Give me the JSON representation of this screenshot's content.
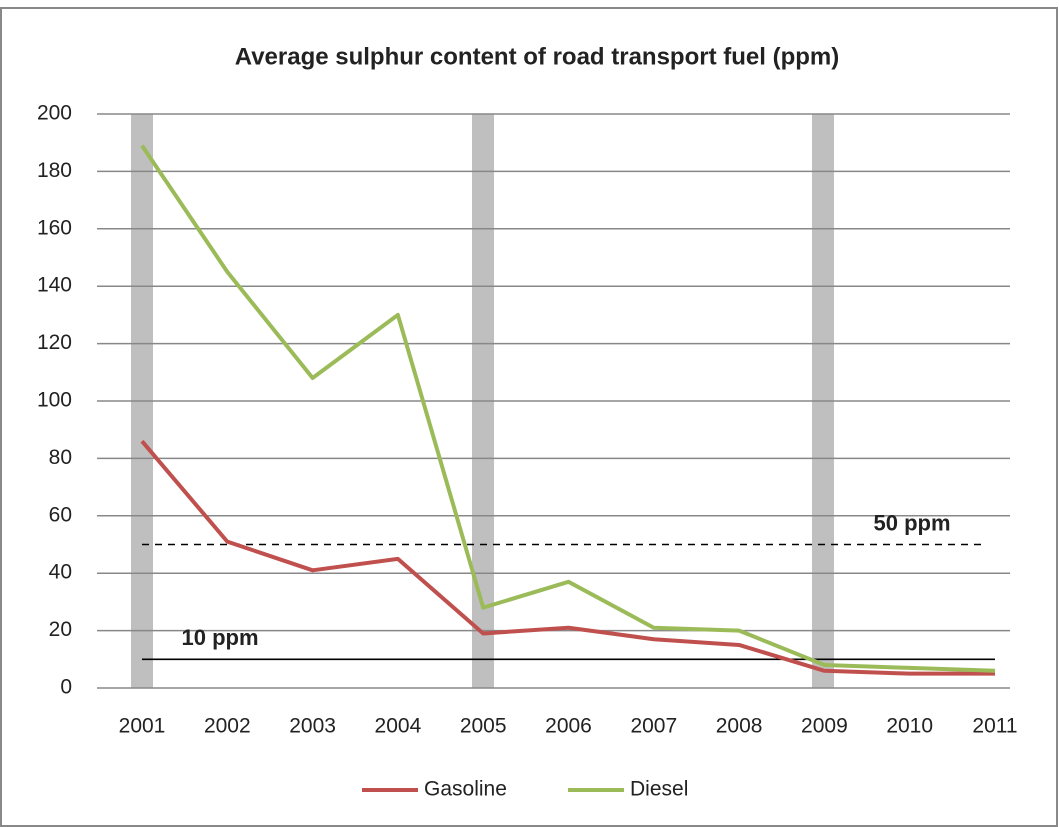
{
  "chart_data": {
    "type": "line",
    "title": "Average sulphur content of road transport fuel (ppm)",
    "categories": [
      "2001",
      "2002",
      "2003",
      "2004",
      "2005",
      "2006",
      "2007",
      "2008",
      "2009",
      "2010",
      "2011"
    ],
    "series": [
      {
        "name": "Gasoline",
        "color": "#c0504d",
        "values": [
          86,
          51,
          41,
          45,
          19,
          21,
          17,
          15,
          6,
          5,
          5
        ]
      },
      {
        "name": "Diesel",
        "color": "#9bbb59",
        "values": [
          189,
          145,
          108,
          130,
          28,
          37,
          21,
          20,
          8,
          7,
          6
        ]
      }
    ],
    "ylim": [
      0,
      200
    ],
    "yticks": [
      0,
      20,
      40,
      60,
      80,
      100,
      120,
      140,
      160,
      180,
      200
    ],
    "grid": true,
    "annotations": [
      {
        "label": "50 ppm",
        "value": 50,
        "style": "dashed"
      },
      {
        "label": "10 ppm",
        "value": 10,
        "style": "solid"
      }
    ],
    "legend": "bottom"
  }
}
